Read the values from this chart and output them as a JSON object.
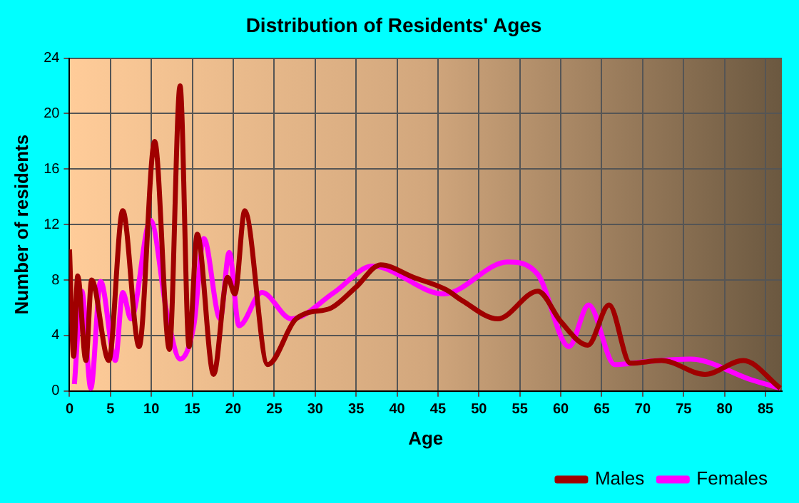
{
  "chart_data": {
    "type": "line",
    "title": "Distribution of Residents' Ages",
    "xlabel": "Age",
    "ylabel": "Number of residents",
    "xlim": [
      0,
      87
    ],
    "xticks": [
      0,
      5,
      10,
      15,
      20,
      25,
      30,
      35,
      40,
      45,
      50,
      55,
      60,
      65,
      70,
      75,
      80,
      85
    ],
    "ylim": [
      0,
      24
    ],
    "yticks": [
      0,
      4,
      8,
      12,
      16,
      20,
      24
    ],
    "grid": true,
    "legend": "bottom right",
    "marker": "none",
    "line_style": "solid",
    "series": [
      {
        "name": "Males",
        "color": "#a00000",
        "x": [
          0,
          0.5,
          1,
          2,
          2.7,
          4.8,
          6.5,
          8.5,
          10.4,
          12.2,
          13.5,
          14.6,
          15.6,
          17.6,
          19.3,
          20.2,
          21.4,
          24.2,
          27.5,
          28.9,
          32,
          35,
          38,
          42,
          46,
          48,
          52.3,
          57.2,
          60,
          63.3,
          65.9,
          68.5,
          72.3,
          77.6,
          82.3,
          86.8
        ],
        "values": [
          10.2,
          2.5,
          8.3,
          2.2,
          8,
          2.2,
          13,
          3.2,
          18,
          3,
          22,
          3.2,
          11.3,
          1.2,
          8.2,
          7,
          13,
          1.9,
          5.1,
          5.6,
          6,
          7.5,
          9.1,
          8.2,
          7.3,
          6.5,
          5.2,
          7.2,
          5,
          3.3,
          6.2,
          2,
          2.2,
          1.2,
          2.2,
          0.2
        ]
      },
      {
        "name": "Females",
        "color": "#ff00ff",
        "x": [
          0.6,
          1.5,
          2.6,
          3.8,
          5.6,
          6.5,
          7.5,
          9.9,
          11.9,
          13.5,
          15.2,
          16.4,
          18.4,
          19.5,
          20.7,
          23.5,
          27.1,
          32.3,
          37,
          45.7,
          53.5,
          57.2,
          61,
          63.4,
          66.6,
          70,
          75.8,
          83.3,
          86.8
        ],
        "values": [
          0.5,
          7.2,
          0.2,
          7.9,
          2.2,
          7.1,
          5.2,
          12.3,
          5.6,
          2.3,
          4.8,
          11,
          5.2,
          10,
          4.7,
          7.1,
          5.2,
          7.1,
          9,
          7,
          9.3,
          8.4,
          3.2,
          6.2,
          1.9,
          2.1,
          2.3,
          0.8,
          0.2
        ]
      }
    ]
  }
}
